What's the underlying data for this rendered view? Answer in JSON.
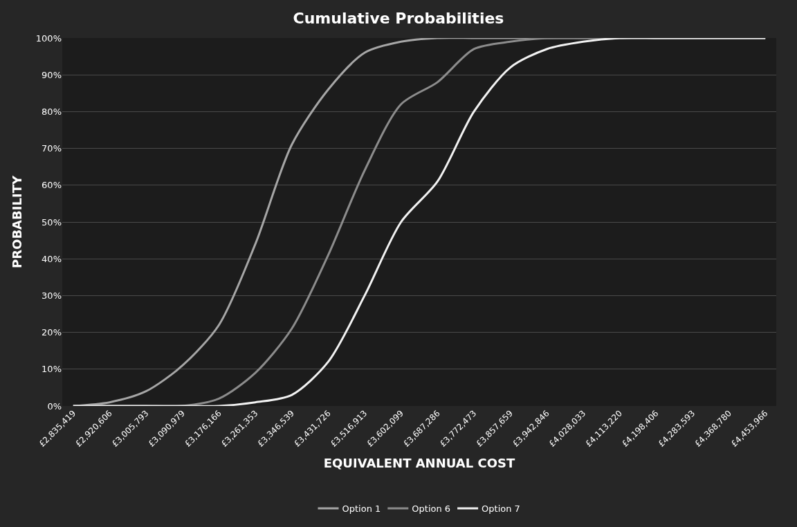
{
  "chart_data": {
    "type": "line",
    "title": "Cumulative Probabilities",
    "xlabel": "EQUIVALENT ANNUAL COST",
    "ylabel": "PROBABILITY",
    "categories": [
      "£2,835,419",
      "£2,920,606",
      "£3,005,793",
      "£3,090,979",
      "£3,176,166",
      "£3,261,353",
      "£3,346,539",
      "£3,431,726",
      "£3,516,913",
      "£3,602,099",
      "£3,687,286",
      "£3,772,473",
      "£3,857,659",
      "£3,942,846",
      "£4,028,033",
      "£4,113,220",
      "£4,198,406",
      "£4,283,593",
      "£4,368,780",
      "£4,453,966"
    ],
    "series": [
      {
        "name": "Option 1",
        "color": "#a6a6a6",
        "values": [
          0,
          1,
          4,
          11,
          22,
          44,
          71,
          86,
          96,
          99,
          100,
          100,
          100,
          100,
          100,
          100,
          100,
          100,
          100,
          100
        ]
      },
      {
        "name": "Option 6",
        "color": "#8c8c8c",
        "values": [
          0,
          0,
          0,
          0,
          2,
          9,
          21,
          41,
          64,
          82,
          88,
          97,
          99,
          100,
          100,
          100,
          100,
          100,
          100,
          100
        ]
      },
      {
        "name": "Option 7",
        "color": "#f2f2f2",
        "values": [
          0,
          0,
          0,
          0,
          0,
          1,
          3,
          12,
          30,
          50,
          61,
          80,
          92,
          97,
          99,
          100,
          100,
          100,
          100,
          100
        ]
      }
    ],
    "ylim": [
      0,
      100
    ],
    "yticks": [
      {
        "value": 0,
        "label": "0%"
      },
      {
        "value": 10,
        "label": "10%"
      },
      {
        "value": 20,
        "label": "20%"
      },
      {
        "value": 30,
        "label": "30%"
      },
      {
        "value": 40,
        "label": "40%"
      },
      {
        "value": 50,
        "label": "50%"
      },
      {
        "value": 60,
        "label": "60%"
      },
      {
        "value": 70,
        "label": "70%"
      },
      {
        "value": 80,
        "label": "80%"
      },
      {
        "value": 90,
        "label": "90%"
      },
      {
        "value": 100,
        "label": "100%"
      }
    ],
    "grid": "y",
    "legend": "bottom",
    "marker": "none",
    "line_style": "solid"
  }
}
